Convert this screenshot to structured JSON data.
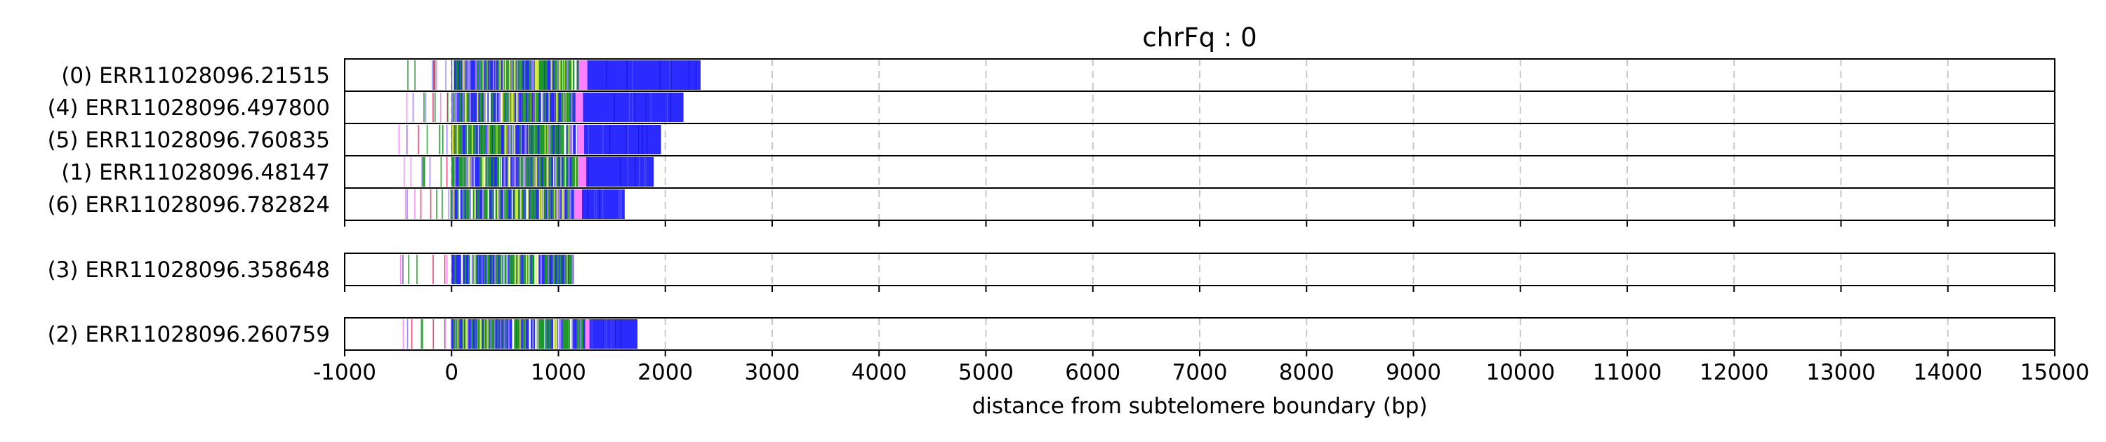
{
  "chart_data": {
    "type": "bar",
    "title": "chrFq : 0",
    "xlabel": "distance from subtelomere boundary (bp)",
    "ylabel": "",
    "xlim": [
      -1000,
      15000
    ],
    "xticks": [
      -1000,
      0,
      1000,
      2000,
      3000,
      4000,
      5000,
      6000,
      7000,
      8000,
      9000,
      10000,
      11000,
      12000,
      13000,
      14000,
      15000
    ],
    "xtick_labels": [
      "-1000",
      "0",
      "1000",
      "2000",
      "3000",
      "4000",
      "5000",
      "6000",
      "7000",
      "8000",
      "9000",
      "10000",
      "11000",
      "12000",
      "13000",
      "14000",
      "15000"
    ],
    "grid": "vertical dashed",
    "colors": {
      "main": "#2b2bff",
      "variant_a": "#1f9a2a",
      "variant_b": "#d4e84a",
      "variant_c": "#ff80ff",
      "variant_d": "#e83a6a",
      "variant_e": "#9a7cff",
      "grid": "#c8c8c8"
    },
    "groups": [
      {
        "tracks": [
          {
            "label": "(0) ERR11028096.21515",
            "subtel_start": -500,
            "dense_start": 0,
            "pink_start": 1190,
            "pink_end": 1270,
            "end": 2330
          },
          {
            "label": "(4) ERR11028096.497800",
            "subtel_start": -490,
            "dense_start": 0,
            "pink_start": 1160,
            "pink_end": 1230,
            "end": 2170
          },
          {
            "label": "(5) ERR11028096.760835",
            "subtel_start": -520,
            "dense_start": 0,
            "pink_start": 1180,
            "pink_end": 1240,
            "end": 1960
          },
          {
            "label": "(1) ERR11028096.48147",
            "subtel_start": -500,
            "dense_start": 0,
            "pink_start": 1180,
            "pink_end": 1260,
            "end": 1890
          },
          {
            "label": "(6) ERR11028096.782824",
            "subtel_start": -480,
            "dense_start": 0,
            "pink_start": 1150,
            "pink_end": 1220,
            "end": 1620
          }
        ]
      },
      {
        "tracks": [
          {
            "label": "(3) ERR11028096.358648",
            "subtel_start": -490,
            "dense_start": 0,
            "pink_start": null,
            "pink_end": null,
            "end": 1140
          }
        ]
      },
      {
        "tracks": [
          {
            "label": "(2) ERR11028096.260759",
            "subtel_start": -480,
            "dense_start": 0,
            "pink_start": 1250,
            "pink_end": 1290,
            "end": 1740
          }
        ]
      }
    ]
  }
}
